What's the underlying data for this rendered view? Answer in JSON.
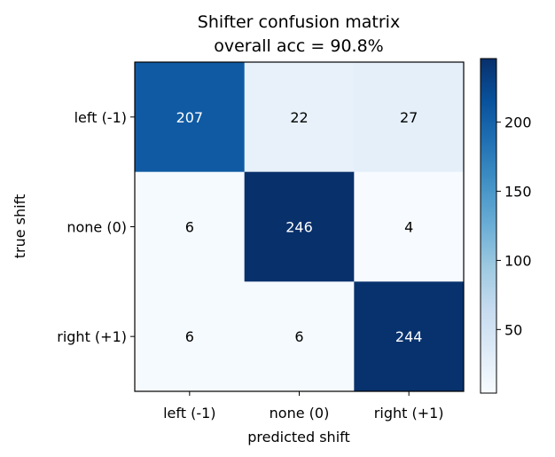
{
  "chart_data": {
    "type": "heatmap",
    "title_line1": "Shifter confusion matrix",
    "title_line2": "overall acc = 90.8%",
    "xlabel": "predicted shift",
    "ylabel": "true shift",
    "x_categories": [
      "left (-1)",
      "none (0)",
      "right (+1)"
    ],
    "y_categories": [
      "left (-1)",
      "none (0)",
      "right (+1)"
    ],
    "matrix": [
      [
        207,
        22,
        27
      ],
      [
        6,
        246,
        4
      ],
      [
        6,
        6,
        244
      ]
    ],
    "colormap": "Blues",
    "colorbar": {
      "min": 4,
      "max": 246,
      "ticks": [
        50,
        100,
        150,
        200
      ],
      "tick_labels": [
        "50",
        "100",
        "150",
        "200"
      ]
    }
  }
}
